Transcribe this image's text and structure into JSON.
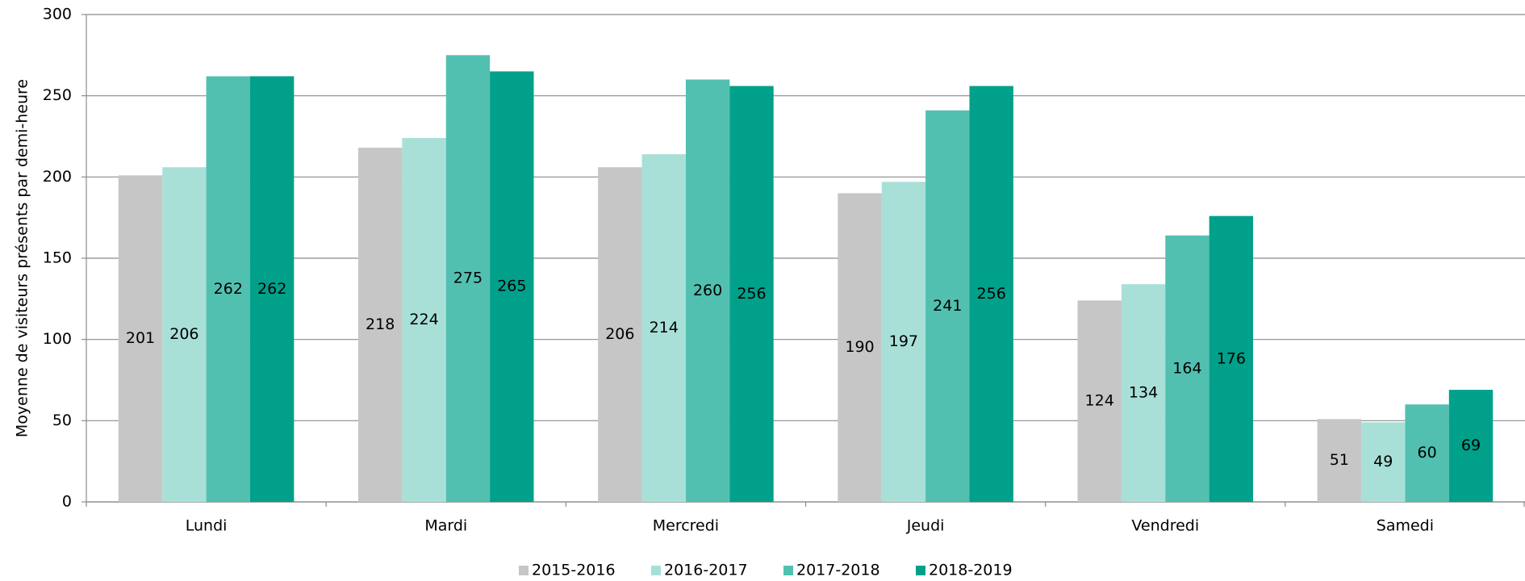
{
  "chart_data": {
    "type": "bar",
    "y_label": "Moyenne de visiteurs présents par demi-heure",
    "categories": [
      "Lundi",
      "Mardi",
      "Mercredi",
      "Jeudi",
      "Vendredi",
      "Samedi"
    ],
    "series": [
      {
        "name": "2015-2016",
        "color": "#c6c6c6",
        "values": [
          201,
          218,
          206,
          190,
          124,
          51
        ]
      },
      {
        "name": "2016-2017",
        "color": "#a8e0d8",
        "values": [
          206,
          224,
          214,
          197,
          134,
          49
        ]
      },
      {
        "name": "2017-2018",
        "color": "#52c0b0",
        "values": [
          262,
          275,
          260,
          241,
          164,
          60
        ]
      },
      {
        "name": "2018-2019",
        "color": "#00a08a",
        "values": [
          262,
          265,
          256,
          256,
          176,
          69
        ]
      }
    ],
    "ylim": [
      0,
      300
    ],
    "yticks": [
      0,
      50,
      100,
      150,
      200,
      250,
      300
    ],
    "grid": true,
    "legend": "bottom"
  }
}
